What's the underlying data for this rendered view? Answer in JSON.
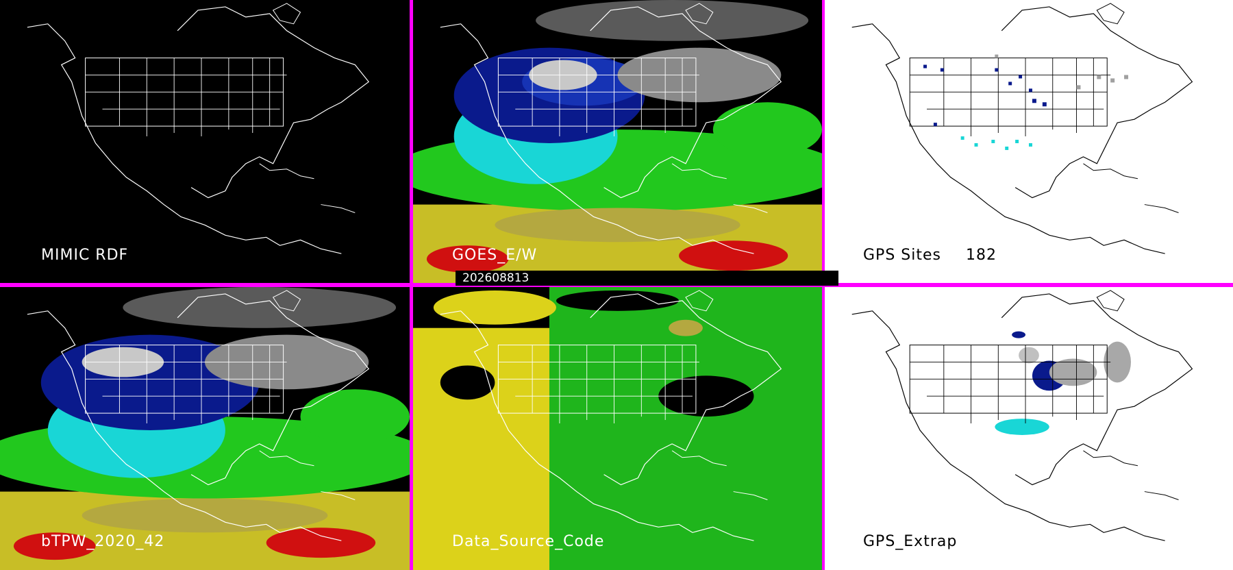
{
  "timestamp": "202608813",
  "panels": {
    "mimic_rdf": {
      "label": "MIMIC RDF"
    },
    "goes_ew": {
      "label": "GOES_E/W"
    },
    "gps_sites": {
      "label": "GPS Sites",
      "count": "182"
    },
    "btpw": {
      "label": "bTPW_2020_42"
    },
    "data_source": {
      "label": "Data_Source_Code"
    },
    "gps_extrap": {
      "label": "GPS_Extrap"
    }
  },
  "colors": {
    "divider": "#ff00ff",
    "dry_navy": "#0a1a8c",
    "cyan": "#19d6d6",
    "green": "#22c81e",
    "yellow": "#dcd21a",
    "olive": "#b4a840",
    "red": "#d01010",
    "gray": "#a0a0a0"
  }
}
